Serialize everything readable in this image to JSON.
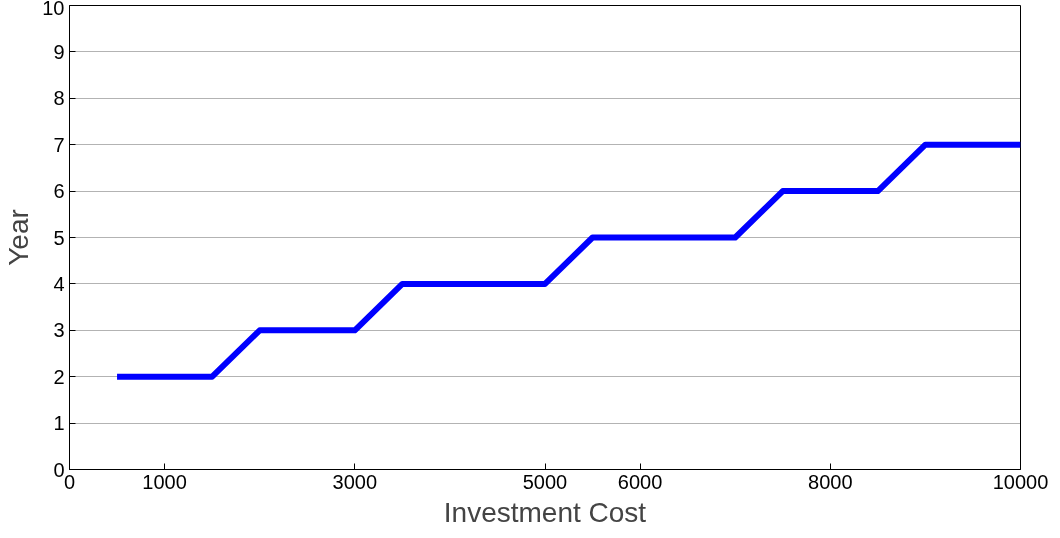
{
  "chart_data": {
    "type": "line",
    "xlabel": "Investment Cost",
    "ylabel": "Year",
    "x": [
      500,
      1500,
      2000,
      3000,
      3500,
      5000,
      5500,
      7000,
      7500,
      8500,
      9000,
      10000
    ],
    "series": [
      {
        "color": "#0000ff",
        "values": [
          2,
          2,
          3,
          3,
          4,
          4,
          5,
          5,
          6,
          6,
          7,
          7
        ]
      }
    ],
    "xlim": [
      0,
      10000
    ],
    "xticks": [
      0,
      1000,
      3000,
      5000,
      6000,
      8000,
      10000
    ],
    "ylim": [
      0,
      10
    ],
    "yticks": [
      0,
      1,
      2,
      3,
      4,
      5,
      6,
      7,
      8,
      9,
      10
    ],
    "grid": "y",
    "marker": "none",
    "line_style": "solid"
  }
}
